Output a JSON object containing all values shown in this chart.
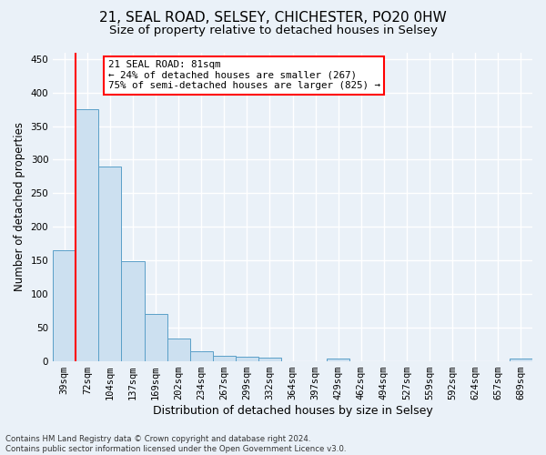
{
  "title": "21, SEAL ROAD, SELSEY, CHICHESTER, PO20 0HW",
  "subtitle": "Size of property relative to detached houses in Selsey",
  "xlabel": "Distribution of detached houses by size in Selsey",
  "ylabel": "Number of detached properties",
  "footer_line1": "Contains HM Land Registry data © Crown copyright and database right 2024.",
  "footer_line2": "Contains public sector information licensed under the Open Government Licence v3.0.",
  "bar_labels": [
    "39sqm",
    "72sqm",
    "104sqm",
    "137sqm",
    "169sqm",
    "202sqm",
    "234sqm",
    "267sqm",
    "299sqm",
    "332sqm",
    "364sqm",
    "397sqm",
    "429sqm",
    "462sqm",
    "494sqm",
    "527sqm",
    "559sqm",
    "592sqm",
    "624sqm",
    "657sqm",
    "689sqm"
  ],
  "bar_values": [
    165,
    375,
    290,
    148,
    70,
    33,
    14,
    7,
    6,
    5,
    0,
    0,
    4,
    0,
    0,
    0,
    0,
    0,
    0,
    0,
    4
  ],
  "bar_color": "#cce0f0",
  "bar_edgecolor": "#5a9fc8",
  "vline_color": "red",
  "annotation_text": "21 SEAL ROAD: 81sqm\n← 24% of detached houses are smaller (267)\n75% of semi-detached houses are larger (825) →",
  "annotation_box_color": "white",
  "annotation_box_edge": "red",
  "ylim": [
    0,
    460
  ],
  "yticks": [
    0,
    50,
    100,
    150,
    200,
    250,
    300,
    350,
    400,
    450
  ],
  "background_color": "#eaf1f8",
  "plot_bg_color": "#eaf1f8",
  "grid_color": "#ffffff",
  "title_fontsize": 11,
  "subtitle_fontsize": 9.5,
  "xlabel_fontsize": 9,
  "ylabel_fontsize": 8.5,
  "tick_fontsize": 7.5,
  "footer_fontsize": 6.2
}
